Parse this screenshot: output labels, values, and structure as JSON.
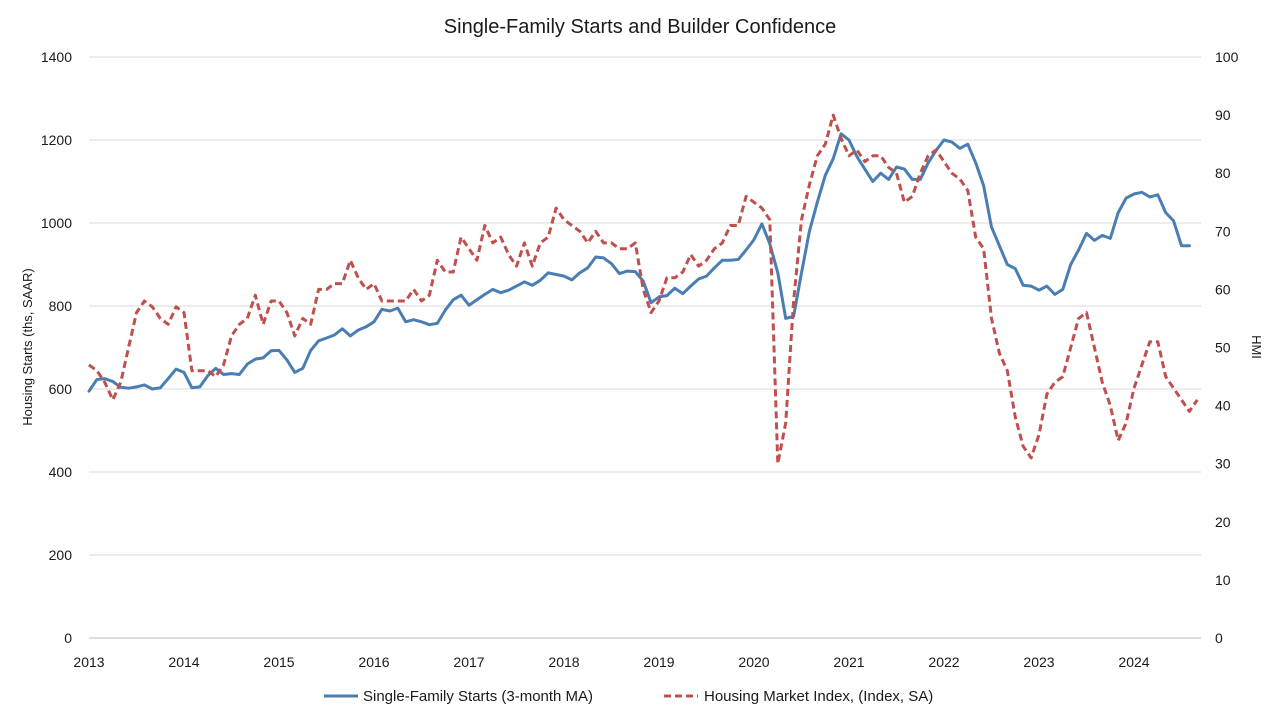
{
  "chart_data": {
    "type": "line",
    "title": "Single-Family Starts and Builder Confidence",
    "ylabel_left": "Housing Starts (ths, SAAR)",
    "ylabel_right": "HMI",
    "ylim_left": [
      0,
      1400
    ],
    "ylim_right": [
      0,
      100
    ],
    "yticks_left": [
      "0",
      "200",
      "400",
      "600",
      "800",
      "1000",
      "1200",
      "1400"
    ],
    "yticks_right": [
      "0",
      "10",
      "20",
      "30",
      "40",
      "50",
      "60",
      "70",
      "80",
      "90",
      "100"
    ],
    "xticks": [
      "2013",
      "2014",
      "2015",
      "2016",
      "2017",
      "2018",
      "2019",
      "2020",
      "2021",
      "2022",
      "2023",
      "2024"
    ],
    "x_start": "2013-01",
    "grid": "horizontal",
    "legend_position": "bottom",
    "series": [
      {
        "name": "Single-Family Starts (3-month MA)",
        "axis": "left",
        "color": "#4a7eb2",
        "style": "solid",
        "values": [
          595,
          623,
          625,
          618,
          604,
          602,
          605,
          610,
          600,
          603,
          625,
          648,
          640,
          603,
          605,
          632,
          650,
          635,
          637,
          635,
          660,
          672,
          675,
          692,
          693,
          670,
          640,
          650,
          693,
          716,
          723,
          730,
          745,
          728,
          742,
          750,
          762,
          792,
          788,
          795,
          762,
          767,
          762,
          755,
          758,
          790,
          815,
          826,
          802,
          815,
          828,
          840,
          832,
          838,
          848,
          858,
          850,
          862,
          880,
          876,
          872,
          863,
          880,
          892,
          918,
          916,
          902,
          878,
          884,
          883,
          860,
          808,
          822,
          825,
          843,
          830,
          848,
          865,
          872,
          892,
          910,
          910,
          912,
          935,
          960,
          998,
          950,
          880,
          770,
          775,
          880,
          980,
          1050,
          1115,
          1155,
          1215,
          1200,
          1160,
          1130,
          1100,
          1120,
          1105,
          1135,
          1130,
          1105,
          1105,
          1145,
          1175,
          1200,
          1195,
          1180,
          1190,
          1145,
          1090,
          990,
          945,
          900,
          890,
          850,
          848,
          838,
          848,
          828,
          840,
          900,
          935,
          975,
          958,
          970,
          963,
          1025,
          1060,
          1070,
          1074,
          1063,
          1068,
          1025,
          1005,
          945,
          945
        ]
      },
      {
        "name": "Housing Market Index, (Index, SA)",
        "axis": "right",
        "color": "#c0504d",
        "style": "dashed",
        "values": [
          47,
          46,
          44,
          41,
          44,
          50,
          56,
          58,
          57,
          55,
          54,
          57,
          56,
          46,
          46,
          46,
          45,
          47,
          52,
          54,
          55,
          59,
          54,
          58,
          58,
          56,
          52,
          55,
          54,
          60,
          60,
          61,
          61,
          65,
          62,
          60,
          61,
          58,
          58,
          58,
          58,
          60,
          58,
          59,
          65,
          63,
          63,
          69,
          67,
          65,
          71,
          68,
          69,
          66,
          64,
          68,
          64,
          68,
          69,
          74,
          72,
          71,
          70,
          68,
          70,
          68,
          68,
          67,
          67,
          68,
          60,
          56,
          58,
          62,
          62,
          63,
          66,
          64,
          65,
          67,
          68,
          71,
          71,
          76,
          75,
          74,
          72,
          30,
          37,
          58,
          72,
          78,
          83,
          85,
          90,
          86,
          83,
          84,
          82,
          83,
          83,
          81,
          80,
          75,
          76,
          80,
          83,
          84,
          82,
          80,
          79,
          77,
          69,
          67,
          55,
          49,
          46,
          38,
          33,
          31,
          35,
          42,
          44,
          45,
          50,
          55,
          56,
          50,
          44,
          40,
          34,
          37,
          43,
          47,
          51,
          51,
          45,
          43,
          41,
          39,
          41
        ]
      }
    ]
  }
}
